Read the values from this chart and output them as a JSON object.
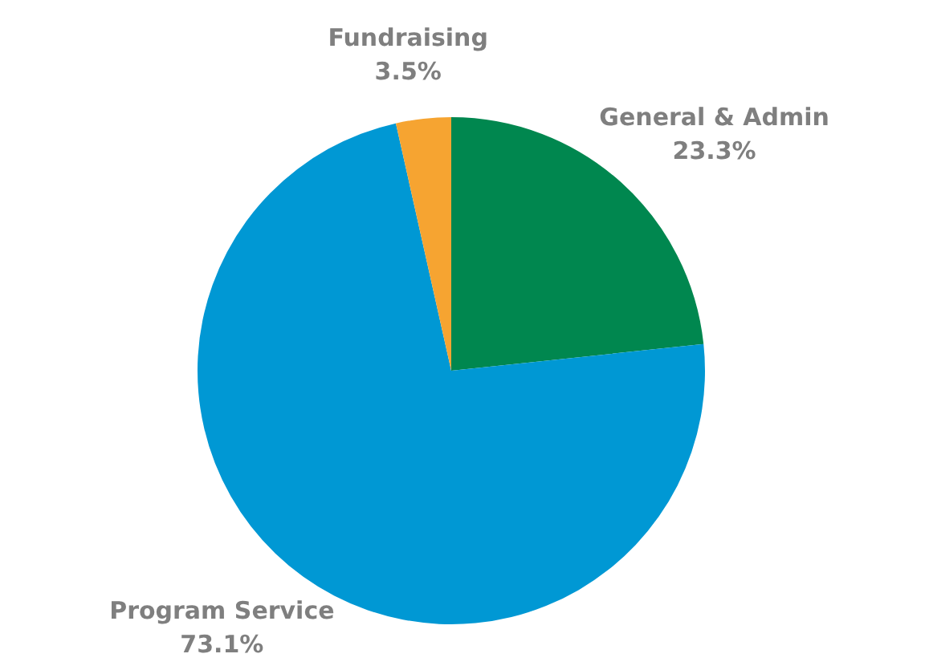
{
  "chart_data": {
    "type": "pie",
    "categories": [
      "General & Admin",
      "Program Service",
      "Fundraising"
    ],
    "values": [
      23.3,
      73.1,
      3.5
    ],
    "colors": [
      "#00874f",
      "#0098d4",
      "#f6a431"
    ],
    "value_labels": [
      "23.3%",
      "73.1%",
      "3.5%"
    ],
    "legend": false
  }
}
